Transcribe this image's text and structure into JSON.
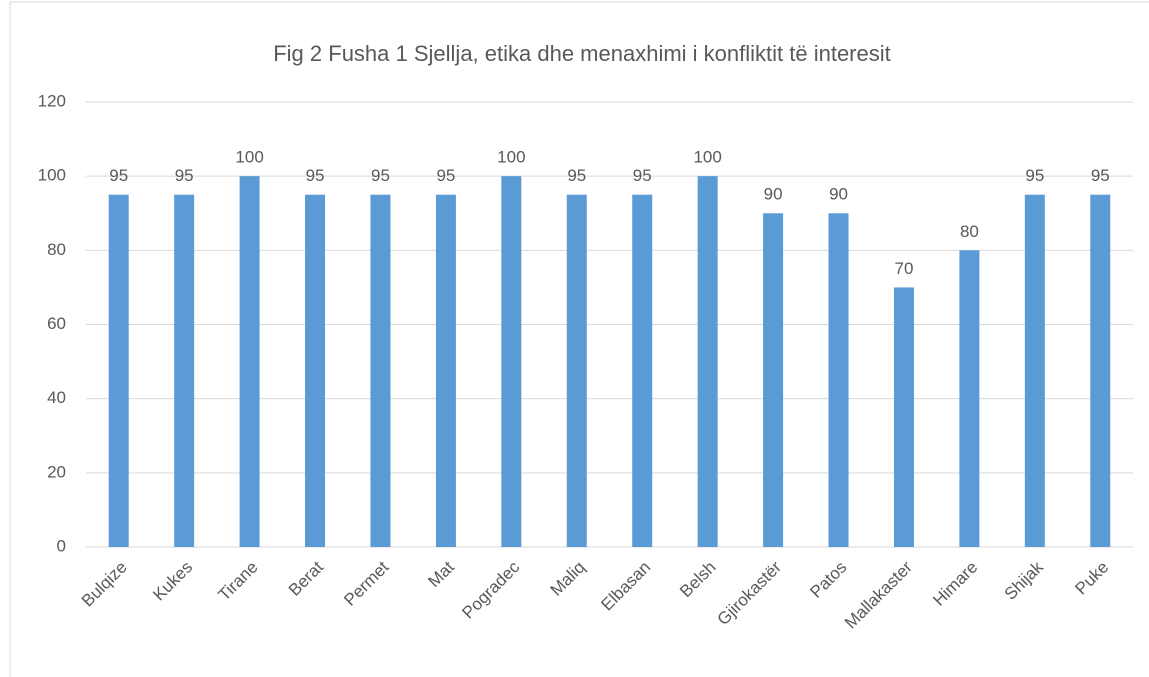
{
  "chart_data": {
    "type": "bar",
    "title": "Fig 2  Fusha 1 Sjellja, etika dhe menaxhimi i konfliktit të interesit",
    "categories": [
      "Bulqize",
      "Kukes",
      "Tirane",
      "Berat",
      "Permet",
      "Mat",
      "Pogradec",
      "Maliq",
      "Elbasan",
      "Belsh",
      "Gjirokastër",
      "Patos",
      "Mallakaster",
      "Himare",
      "Shijak",
      "Puke"
    ],
    "values": [
      95,
      95,
      100,
      95,
      95,
      95,
      100,
      95,
      95,
      100,
      90,
      90,
      70,
      80,
      95,
      95
    ],
    "color": "#5b9bd5",
    "ylim": [
      0,
      120
    ],
    "yticks": [
      0,
      20,
      40,
      60,
      80,
      100,
      120
    ],
    "grid": true
  }
}
